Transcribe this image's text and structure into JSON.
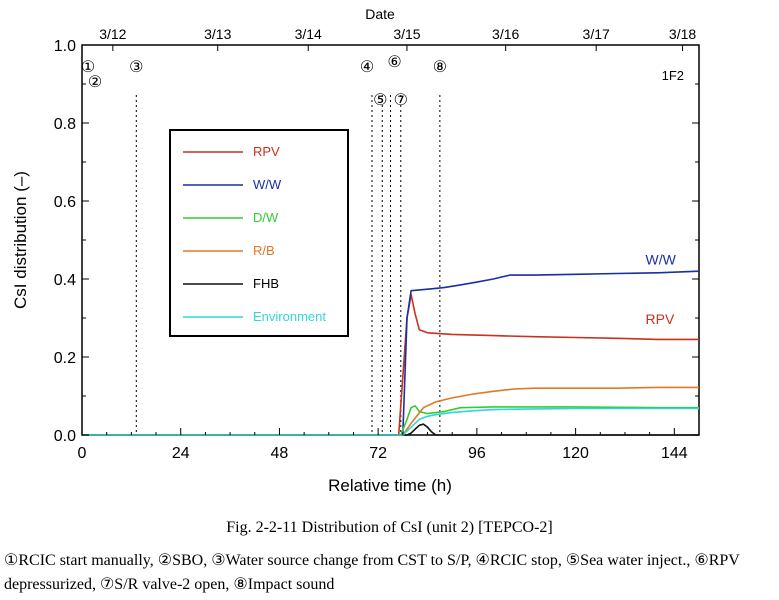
{
  "chart_data": {
    "type": "line",
    "title": "Fig. 2-2-11 Distribution of CsI (unit 2) [TEPCO-2]",
    "xlabel": "Relative time (h)",
    "ylabel": "CsI distribution (–)",
    "top_axis_label": "Date",
    "xlim": [
      0,
      150
    ],
    "ylim": [
      0,
      1.0
    ],
    "x_ticks": [
      0,
      24,
      48,
      72,
      96,
      120,
      144
    ],
    "y_ticks": [
      "0.0",
      "0.2",
      "0.4",
      "0.6",
      "0.8",
      "1.0"
    ],
    "date_ticks": [
      {
        "label": "3/12",
        "x": 7.5
      },
      {
        "label": "3/13",
        "x": 33
      },
      {
        "label": "3/14",
        "x": 55
      },
      {
        "label": "3/15",
        "x": 79
      },
      {
        "label": "3/16",
        "x": 103
      },
      {
        "label": "3/17",
        "x": 125
      },
      {
        "label": "3/18",
        "x": 146
      }
    ],
    "unit_label": "1F2",
    "events": [
      {
        "label": "①",
        "x": 0,
        "dashed": false
      },
      {
        "label": "②",
        "x": 0,
        "dashed": false
      },
      {
        "label": "③",
        "x": 13.2,
        "dashed": true
      },
      {
        "label": "④",
        "x": 70.5,
        "dashed": true
      },
      {
        "label": "⑤",
        "x": 73,
        "dashed": true
      },
      {
        "label": "⑥",
        "x": 75,
        "dashed": true
      },
      {
        "label": "⑦",
        "x": 77.5,
        "dashed": true
      },
      {
        "label": "⑧",
        "x": 87,
        "dashed": true
      }
    ],
    "series": [
      {
        "name": "RPV",
        "color": "#c8321e",
        "x": [
          0,
          77,
          79,
          80,
          81,
          82,
          84,
          90,
          100,
          110,
          120,
          130,
          140,
          150
        ],
        "y": [
          0,
          0,
          0.3,
          0.36,
          0.31,
          0.27,
          0.262,
          0.258,
          0.255,
          0.252,
          0.25,
          0.248,
          0.245,
          0.245
        ]
      },
      {
        "name": "W/W",
        "color": "#1a2fa0",
        "x": [
          0,
          78,
          79,
          80,
          82,
          85,
          88,
          92,
          96,
          100,
          102,
          104,
          110,
          120,
          130,
          140,
          150
        ],
        "y": [
          0,
          0,
          0.3,
          0.37,
          0.372,
          0.375,
          0.378,
          0.385,
          0.392,
          0.4,
          0.405,
          0.41,
          0.41,
          0.412,
          0.414,
          0.416,
          0.42
        ]
      },
      {
        "name": "D/W",
        "color": "#33cc33",
        "x": [
          0,
          77.5,
          79,
          80,
          81,
          82,
          84,
          88,
          92,
          100,
          110,
          120,
          130,
          140,
          150
        ],
        "y": [
          0,
          0,
          0.04,
          0.07,
          0.075,
          0.06,
          0.055,
          0.06,
          0.07,
          0.072,
          0.072,
          0.072,
          0.071,
          0.07,
          0.07
        ]
      },
      {
        "name": "R/B",
        "color": "#e07828",
        "x": [
          0,
          78,
          80,
          83,
          86,
          90,
          95,
          100,
          105,
          110,
          120,
          130,
          140,
          150
        ],
        "y": [
          0,
          0,
          0.03,
          0.07,
          0.085,
          0.095,
          0.105,
          0.112,
          0.118,
          0.12,
          0.12,
          0.12,
          0.122,
          0.122
        ]
      },
      {
        "name": "FHB",
        "color": "#111111",
        "x": [
          0,
          79,
          80,
          81,
          82,
          83,
          84,
          85,
          86,
          150
        ],
        "y": [
          0,
          0,
          0.005,
          0.015,
          0.025,
          0.028,
          0.02,
          0.008,
          0,
          0
        ]
      },
      {
        "name": "Environment",
        "color": "#33d6d6",
        "x": [
          0,
          78,
          80,
          82,
          84,
          86,
          90,
          95,
          100,
          110,
          120,
          130,
          140,
          150
        ],
        "y": [
          0,
          0,
          0.02,
          0.04,
          0.048,
          0.052,
          0.058,
          0.062,
          0.065,
          0.067,
          0.068,
          0.068,
          0.068,
          0.068
        ]
      }
    ],
    "annotations": [
      {
        "text": "W/W",
        "series": "W/W",
        "x": 137,
        "y": 0.437
      },
      {
        "text": "RPV",
        "series": "RPV",
        "x": 137,
        "y": 0.285
      }
    ],
    "legend_position": "left"
  },
  "caption": {
    "title": "Fig. 2-2-11 Distribution of CsI (unit 2) [TEPCO-2]",
    "note": "①RCIC start manually, ②SBO, ③Water source change from CST to S/P, ④RCIC stop, ⑤Sea water inject., ⑥RPV depressurized, ⑦S/R valve-2 open, ⑧Impact sound"
  }
}
